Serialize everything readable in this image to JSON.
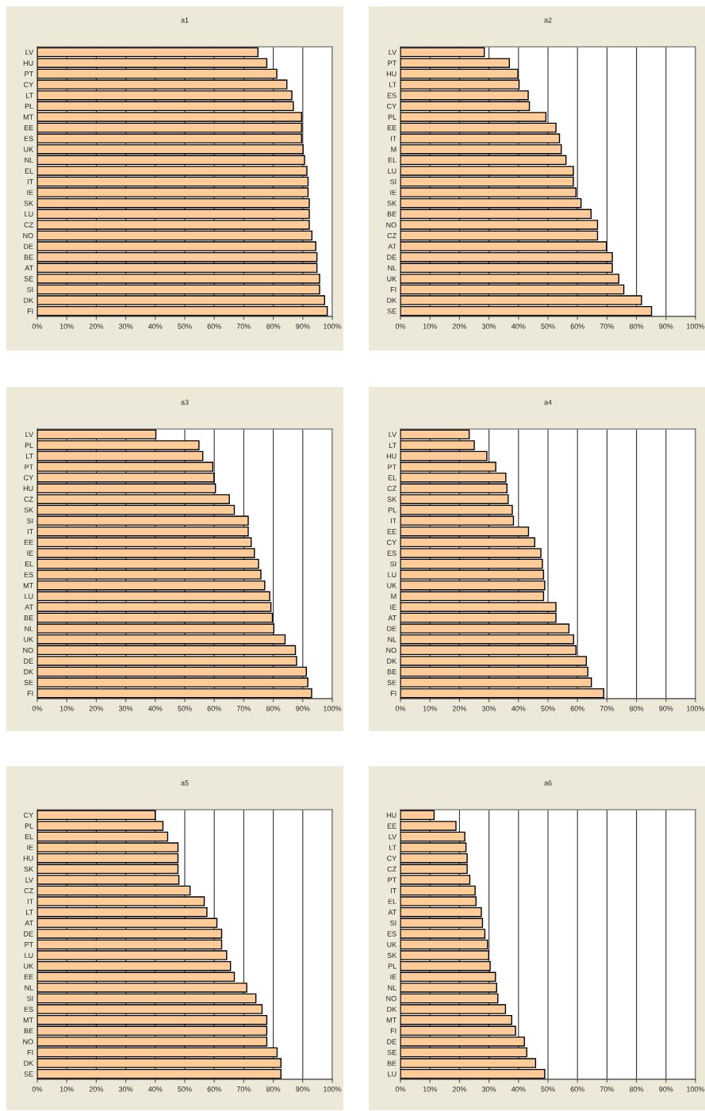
{
  "chart_data": [
    {
      "type": "bar",
      "orientation": "horizontal",
      "title": "a1",
      "color": "#ffcc99",
      "grid": "x",
      "xlim": [
        0,
        100
      ],
      "xticks": [
        {
          "value": 0,
          "label": "0%"
        },
        {
          "value": 10,
          "label": "10%"
        },
        {
          "value": 20,
          "label": "20%"
        },
        {
          "value": 30,
          "label": "30%"
        },
        {
          "value": 40,
          "label": "40%"
        },
        {
          "value": 50,
          "label": "50%"
        },
        {
          "value": 60,
          "label": "60%"
        },
        {
          "value": 70,
          "label": "70%"
        },
        {
          "value": 80,
          "label": "80%"
        },
        {
          "value": 90,
          "label": "90%"
        },
        {
          "value": 100,
          "label": "100%"
        }
      ],
      "categories": [
        "LV",
        "HU",
        "PT",
        "CY",
        "LT",
        "PL",
        "MT",
        "EE",
        "ES",
        "UK",
        "NL",
        "EL",
        "IT",
        "IE",
        "SK",
        "LU",
        "CZ",
        "NO",
        "DE",
        "BE",
        "AT",
        "SE",
        "SI",
        "DK",
        "FI"
      ],
      "values": [
        74.8,
        77.8,
        81.2,
        84.6,
        86.3,
        86.8,
        89.6,
        89.6,
        89.6,
        90.1,
        90.6,
        91.4,
        91.8,
        91.8,
        92.2,
        92.2,
        92.2,
        93.1,
        94.4,
        94.8,
        94.8,
        95.7,
        95.7,
        97.4,
        98.3
      ]
    },
    {
      "type": "bar",
      "orientation": "horizontal",
      "title": "a2",
      "color": "#ffcc99",
      "grid": "x",
      "xlim": [
        0,
        100
      ],
      "xticks": [
        {
          "value": 0,
          "label": "0%"
        },
        {
          "value": 10,
          "label": "10%"
        },
        {
          "value": 20,
          "label": "20%"
        },
        {
          "value": 30,
          "label": "30%"
        },
        {
          "value": 40,
          "label": "40%"
        },
        {
          "value": 50,
          "label": "50%"
        },
        {
          "value": 60,
          "label": "60%"
        },
        {
          "value": 70,
          "label": "70%"
        },
        {
          "value": 80,
          "label": "80%"
        },
        {
          "value": 90,
          "label": "90%"
        },
        {
          "value": 100,
          "label": "100%"
        }
      ],
      "categories": [
        "LV",
        "PT",
        "HU",
        "LT",
        "ES",
        "CY",
        "PL",
        "EE",
        "IT",
        "M",
        "EL",
        "LU",
        "SI",
        "IE",
        "SK",
        "BE",
        "NO",
        "CZ",
        "AT",
        "DE",
        "NL",
        "UK",
        "FI",
        "DK",
        "SE"
      ],
      "values": [
        28.4,
        36.9,
        39.8,
        40.2,
        43.3,
        43.7,
        49.3,
        52.7,
        53.9,
        54.5,
        56.1,
        58.6,
        58.6,
        59.5,
        61.2,
        64.6,
        66.8,
        66.8,
        69.8,
        71.8,
        71.8,
        74.0,
        75.7,
        81.7,
        85.1
      ]
    },
    {
      "type": "bar",
      "orientation": "horizontal",
      "title": "a3",
      "color": "#ffcc99",
      "grid": "x",
      "xlim": [
        0,
        100
      ],
      "xticks": [
        {
          "value": 0,
          "label": "0%"
        },
        {
          "value": 10,
          "label": "10%"
        },
        {
          "value": 20,
          "label": "20%"
        },
        {
          "value": 30,
          "label": "30%"
        },
        {
          "value": 40,
          "label": "40%"
        },
        {
          "value": 50,
          "label": "50%"
        },
        {
          "value": 60,
          "label": "60%"
        },
        {
          "value": 70,
          "label": "70%"
        },
        {
          "value": 80,
          "label": "80%"
        },
        {
          "value": 90,
          "label": "90%"
        },
        {
          "value": 100,
          "label": "100%"
        }
      ],
      "categories": [
        "LV",
        "PL",
        "LT",
        "PT",
        "CY",
        "HU",
        "CZ",
        "SK",
        "SI",
        "IT",
        "EE",
        "IE",
        "EL",
        "ES",
        "MT",
        "LU",
        "AT",
        "BE",
        "NL",
        "UK",
        "NO",
        "DE",
        "DK",
        "SE",
        "FI"
      ],
      "values": [
        40.2,
        54.8,
        56.1,
        59.5,
        59.9,
        60.4,
        65.1,
        66.8,
        71.5,
        71.5,
        72.5,
        73.6,
        75.0,
        75.8,
        77.1,
        78.8,
        79.2,
        79.7,
        80.2,
        84.0,
        87.5,
        87.9,
        91.2,
        91.7,
        93.0
      ]
    },
    {
      "type": "bar",
      "orientation": "horizontal",
      "title": "a4",
      "color": "#ffcc99",
      "grid": "x",
      "xlim": [
        0,
        100
      ],
      "xticks": [
        {
          "value": 0,
          "label": "0%"
        },
        {
          "value": 10,
          "label": "10%"
        },
        {
          "value": 20,
          "label": "20%"
        },
        {
          "value": 30,
          "label": "30%"
        },
        {
          "value": 40,
          "label": "40%"
        },
        {
          "value": 50,
          "label": "50%"
        },
        {
          "value": 60,
          "label": "60%"
        },
        {
          "value": 70,
          "label": "70%"
        },
        {
          "value": 80,
          "label": "80%"
        },
        {
          "value": 90,
          "label": "90%"
        },
        {
          "value": 100,
          "label": "100%"
        }
      ],
      "categories": [
        "LV",
        "LT",
        "HU",
        "PT",
        "EL",
        "CZ",
        "SK",
        "PL",
        "IT",
        "EE",
        "CY",
        "ES",
        "SI",
        "LU",
        "UK",
        "M",
        "IE",
        "AT",
        "DE",
        "NL",
        "NO",
        "DK",
        "BE",
        "SE",
        "FI"
      ],
      "values": [
        23.3,
        25.0,
        29.3,
        32.3,
        35.7,
        36.1,
        36.5,
        37.9,
        38.3,
        43.4,
        45.5,
        47.6,
        48.1,
        48.5,
        48.9,
        48.5,
        52.7,
        52.7,
        57.1,
        58.7,
        59.5,
        63.0,
        63.5,
        64.7,
        68.9
      ]
    },
    {
      "type": "bar",
      "orientation": "horizontal",
      "title": "a5",
      "color": "#ffcc99",
      "grid": "x",
      "xlim": [
        0,
        100
      ],
      "xticks": [
        {
          "value": 0,
          "label": "0%"
        },
        {
          "value": 10,
          "label": "10%"
        },
        {
          "value": 20,
          "label": "20%"
        },
        {
          "value": 30,
          "label": "30%"
        },
        {
          "value": 40,
          "label": "40%"
        },
        {
          "value": 50,
          "label": "50%"
        },
        {
          "value": 60,
          "label": "60%"
        },
        {
          "value": 70,
          "label": "70%"
        },
        {
          "value": 80,
          "label": "80%"
        },
        {
          "value": 90,
          "label": "90%"
        },
        {
          "value": 100,
          "label": "100%"
        }
      ],
      "categories": [
        "CY",
        "PL",
        "EL",
        "IE",
        "HU",
        "SK",
        "LV",
        "CZ",
        "IT",
        "LT",
        "AT",
        "DE",
        "PT",
        "LU",
        "UK",
        "EE",
        "NL",
        "SI",
        "ES",
        "MT",
        "BE",
        "NO",
        "FI",
        "DK",
        "SE"
      ],
      "values": [
        40.0,
        42.6,
        44.2,
        47.7,
        47.7,
        47.7,
        48.0,
        51.8,
        56.6,
        57.5,
        60.9,
        62.5,
        62.5,
        64.2,
        65.5,
        66.8,
        71.0,
        74.1,
        76.2,
        77.8,
        77.8,
        77.8,
        81.3,
        82.6,
        82.6
      ]
    },
    {
      "type": "bar",
      "orientation": "horizontal",
      "title": "a6",
      "color": "#ffcc99",
      "grid": "x",
      "xlim": [
        0,
        100
      ],
      "xticks": [
        {
          "value": 0,
          "label": "0%"
        },
        {
          "value": 10,
          "label": "10%"
        },
        {
          "value": 20,
          "label": "20%"
        },
        {
          "value": 30,
          "label": "30%"
        },
        {
          "value": 40,
          "label": "40%"
        },
        {
          "value": 50,
          "label": "50%"
        },
        {
          "value": 60,
          "label": "60%"
        },
        {
          "value": 70,
          "label": "70%"
        },
        {
          "value": 80,
          "label": "80%"
        },
        {
          "value": 90,
          "label": "90%"
        },
        {
          "value": 100,
          "label": "100%"
        }
      ],
      "categories": [
        "HU",
        "EE",
        "LV",
        "LT",
        "CY",
        "CZ",
        "PT",
        "IT",
        "EL",
        "AT",
        "SI",
        "ES",
        "UK",
        "SK",
        "PL",
        "IE",
        "NL",
        "NO",
        "DK",
        "MT",
        "FI",
        "DE",
        "SE",
        "BE",
        "LU"
      ],
      "values": [
        11.4,
        18.8,
        21.8,
        22.2,
        22.6,
        22.6,
        23.5,
        25.3,
        25.6,
        27.4,
        27.8,
        28.6,
        29.5,
        29.9,
        30.4,
        32.2,
        32.6,
        33.0,
        35.6,
        37.7,
        39.0,
        42.0,
        42.8,
        45.8,
        48.9
      ]
    }
  ]
}
